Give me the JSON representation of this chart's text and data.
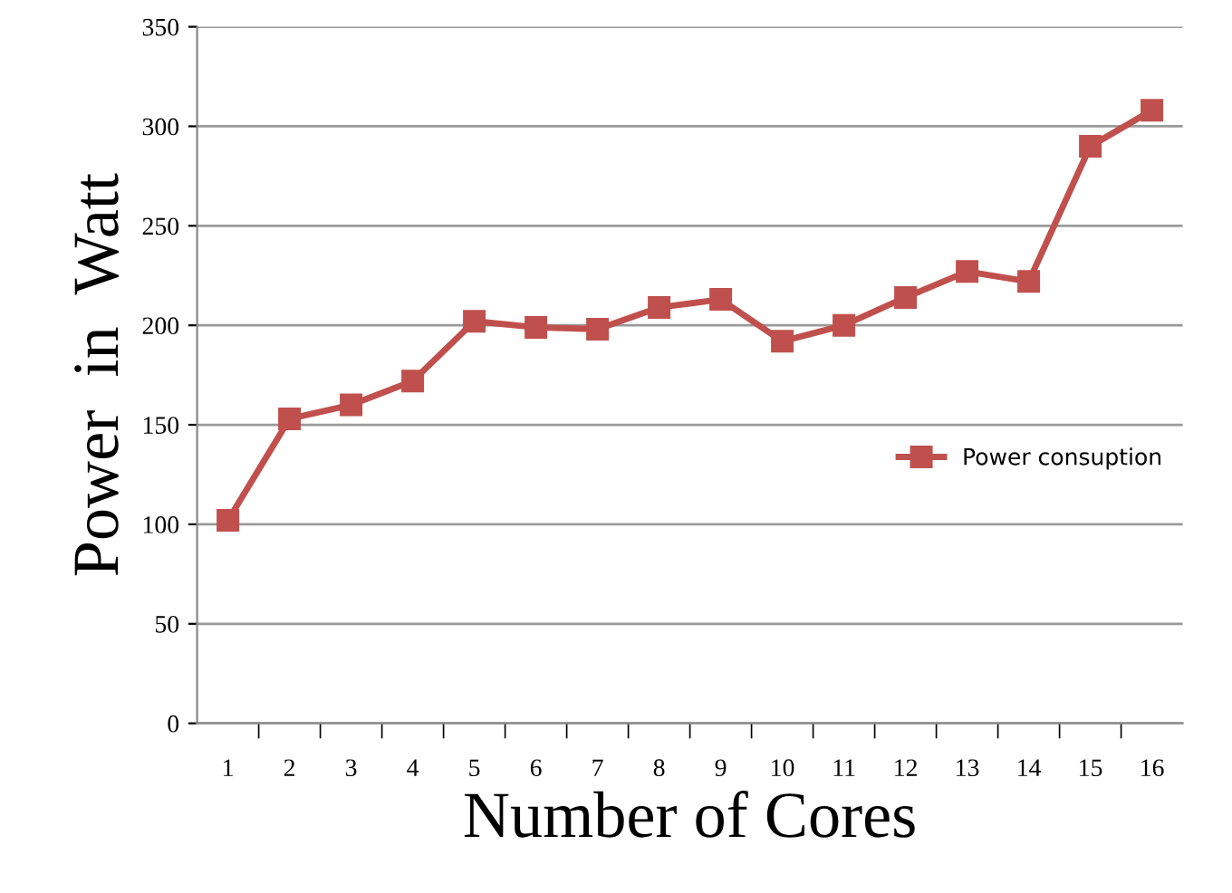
{
  "chart_data": {
    "type": "line",
    "xlabel": "Number of Cores",
    "ylabel": "Power  in  Watt",
    "categories": [
      "1",
      "2",
      "3",
      "4",
      "5",
      "6",
      "7",
      "8",
      "9",
      "10",
      "11",
      "12",
      "13",
      "14",
      "15",
      "16"
    ],
    "series": [
      {
        "name": "Power consuption",
        "color": "#c0504d",
        "values": [
          102,
          153,
          160,
          172,
          202,
          199,
          198,
          209,
          213,
          192,
          200,
          214,
          227,
          222,
          290,
          308
        ]
      }
    ],
    "ylim": [
      0,
      350
    ],
    "yticks": [
      0,
      50,
      100,
      150,
      200,
      250,
      300,
      350
    ],
    "grid": "y",
    "legend": "right",
    "marker": "square",
    "line_style": "solid"
  }
}
